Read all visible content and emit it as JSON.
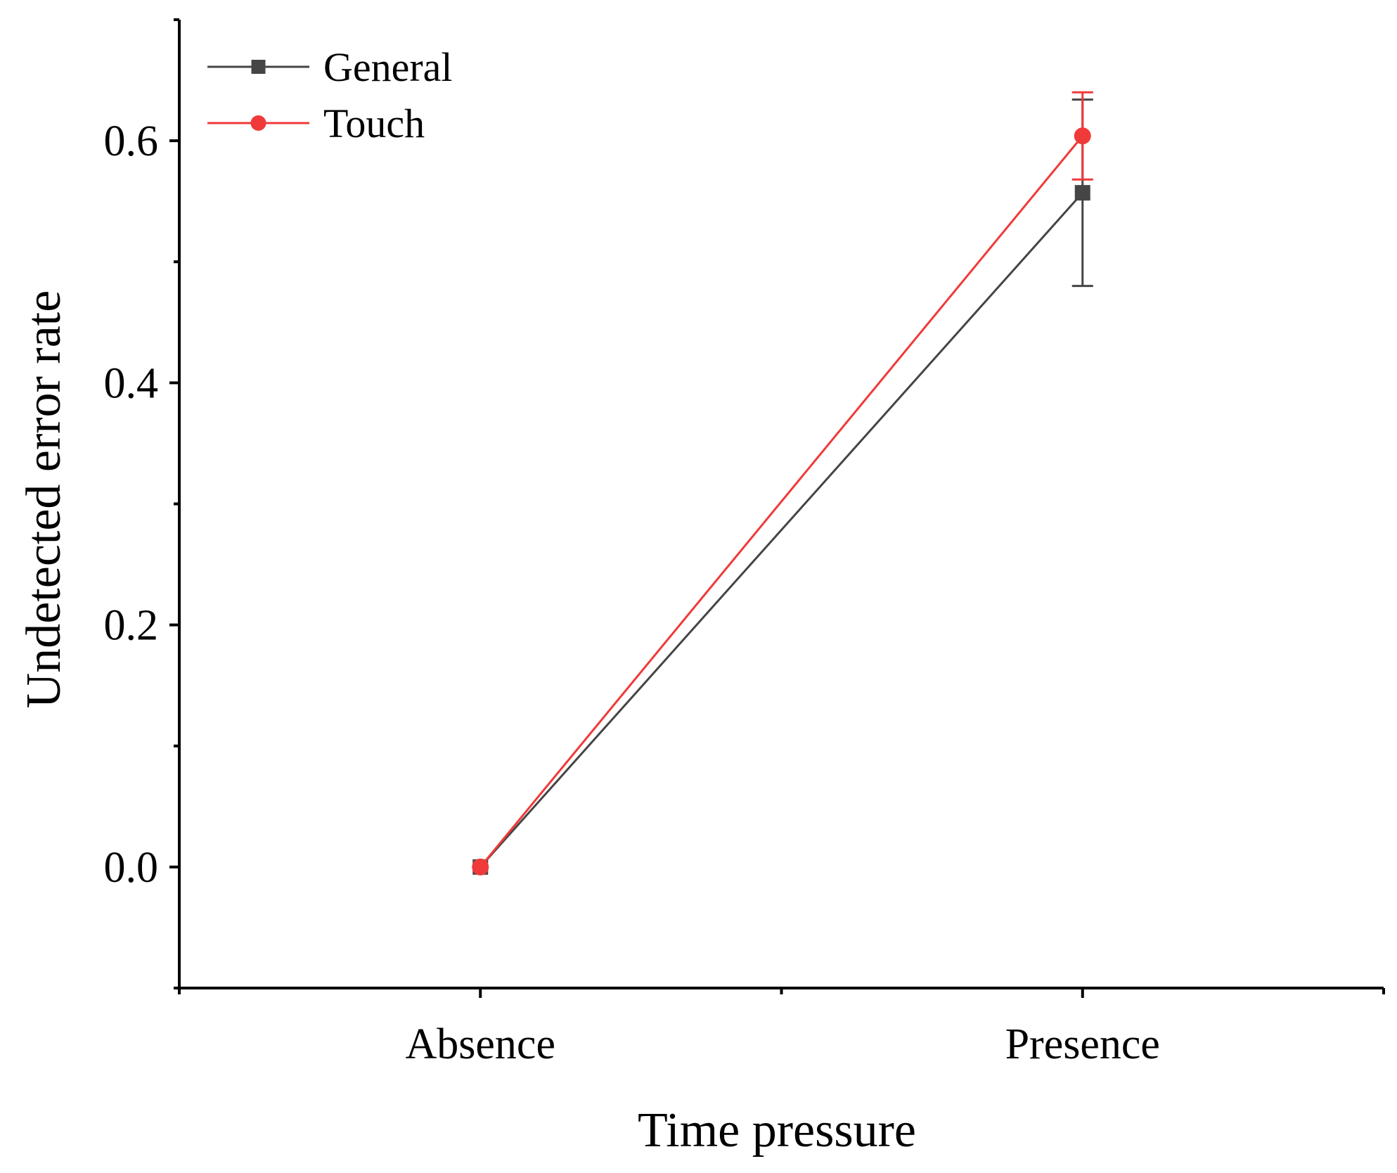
{
  "chart_data": {
    "type": "line",
    "title": "",
    "xlabel": "Time pressure",
    "ylabel": "Undetected error rate",
    "categories": [
      "Absence",
      "Presence"
    ],
    "ylim": [
      -0.1,
      0.7
    ],
    "yticks": [
      0.0,
      0.2,
      0.4,
      0.6
    ],
    "ytick_labels": [
      "0.0",
      "0.2",
      "0.4",
      "0.6"
    ],
    "yminor_ticks": [
      -0.1,
      0.1,
      0.3,
      0.5,
      0.7
    ],
    "grid": false,
    "legend_position": "top-left",
    "series": [
      {
        "name": "General",
        "marker": "square",
        "color": "#454545",
        "values": [
          0.0,
          0.557
        ],
        "error": [
          0.0,
          0.077
        ]
      },
      {
        "name": "Touch",
        "marker": "circle",
        "color": "#f03a3a",
        "values": [
          0.0,
          0.604
        ],
        "error": [
          0.0,
          0.036
        ]
      }
    ]
  }
}
